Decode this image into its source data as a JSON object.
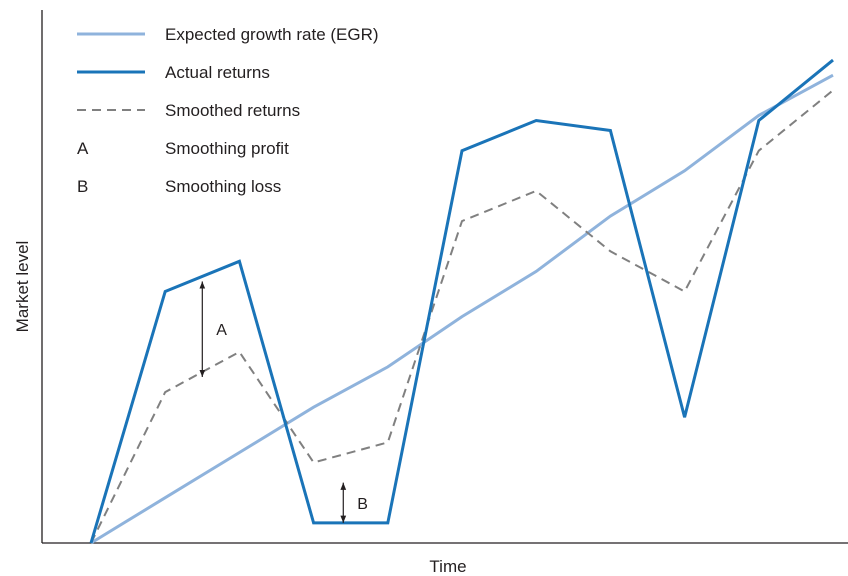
{
  "chart_data": {
    "type": "line",
    "xlabel": "Time",
    "ylabel": "Market level",
    "x": [
      0,
      1,
      2,
      3,
      4,
      5,
      6,
      7,
      8,
      9,
      10
    ],
    "xlim": [
      -0.6,
      10.0
    ],
    "ylim": [
      0,
      100
    ],
    "grid": false,
    "legend_position": "top-left",
    "series": [
      {
        "name": "Expected growth rate (EGR)",
        "style": "light-solid",
        "color": "#8fb3dc",
        "values": [
          0,
          9,
          18,
          27,
          35,
          45,
          54,
          65,
          74,
          85,
          93
        ]
      },
      {
        "name": "Actual returns",
        "style": "dark-solid",
        "color": "#1a74b8",
        "values": [
          0,
          50,
          56,
          4,
          4,
          78,
          84,
          82,
          25,
          84,
          96
        ]
      },
      {
        "name": "Smoothed returns",
        "style": "dashed",
        "color": "#808080",
        "values": [
          0,
          30,
          38,
          16,
          20,
          64,
          70,
          58,
          50,
          78,
          90
        ]
      }
    ],
    "key_items": [
      {
        "symbol": "A",
        "text": "Smoothing profit"
      },
      {
        "symbol": "B",
        "text": "Smoothing loss"
      }
    ],
    "annotations": [
      {
        "label": "A",
        "x": 1.5,
        "y_from": 33,
        "y_to": 52
      },
      {
        "label": "B",
        "x": 3.4,
        "y_from": 4,
        "y_to": 12
      }
    ]
  }
}
